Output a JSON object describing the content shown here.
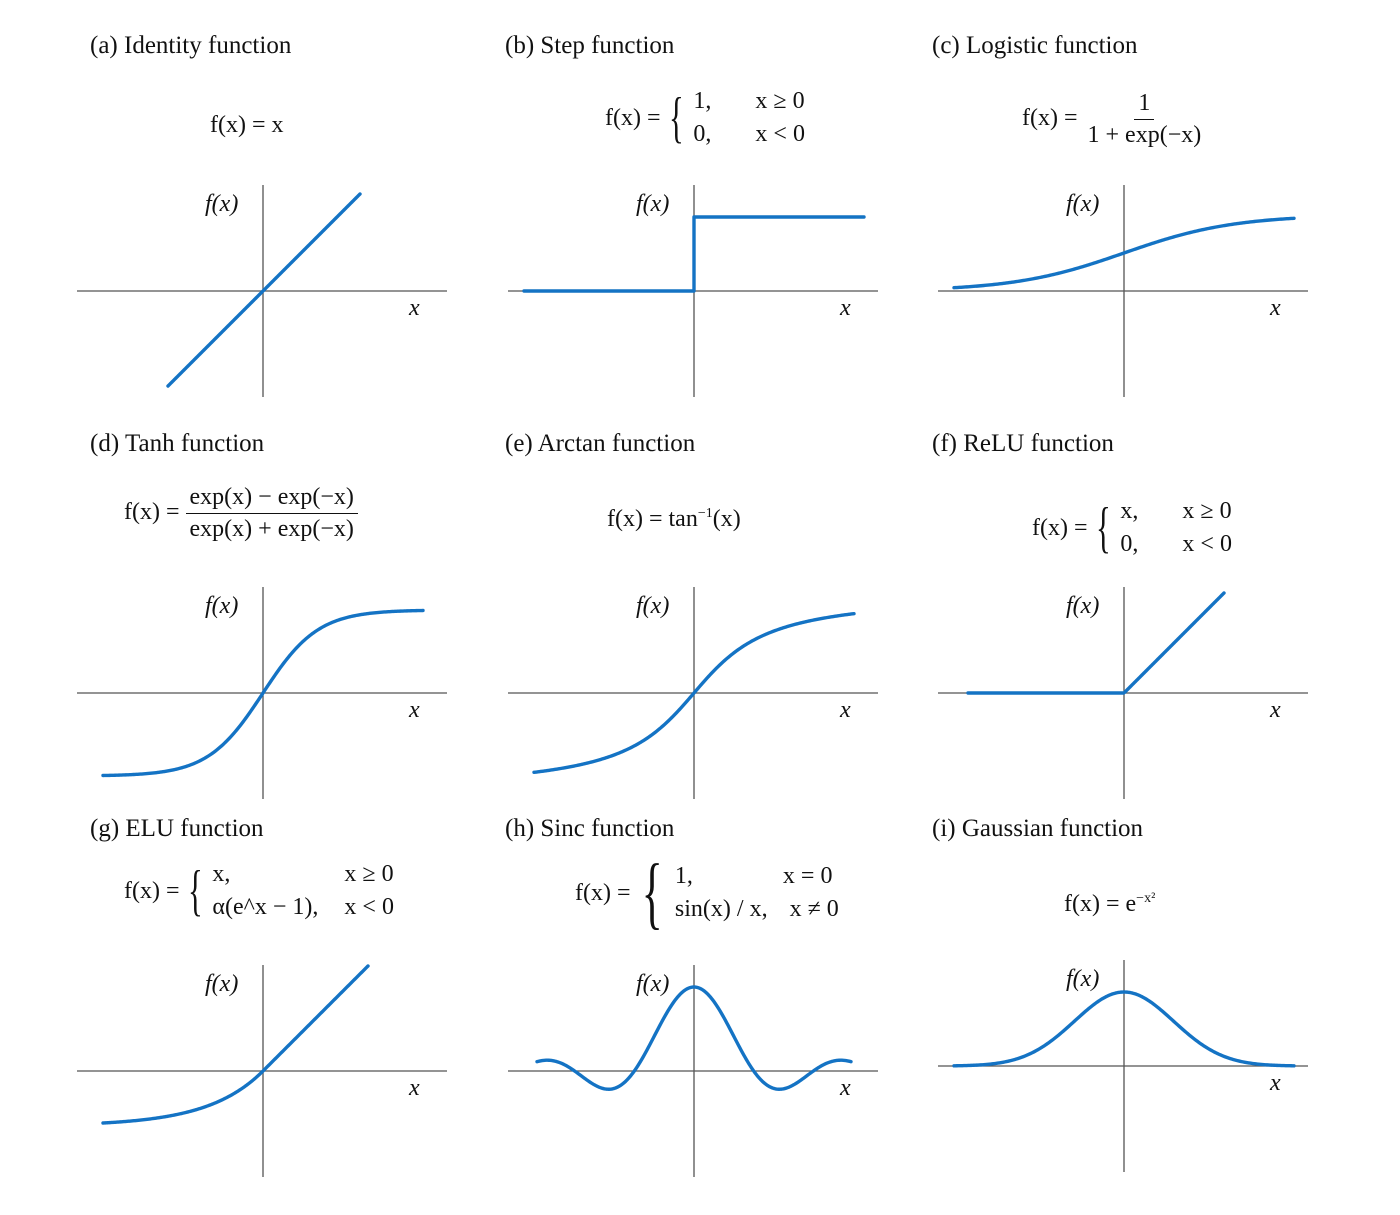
{
  "axis_labels": {
    "y": "f(x)",
    "x": "x"
  },
  "colors": {
    "curve": "#1473c4",
    "axis": "#555555"
  },
  "panels": [
    {
      "id": "identity",
      "title": "(a) Identity function",
      "formula": {
        "lhs": "f(x) = x"
      }
    },
    {
      "id": "step",
      "title": "(b) Step function",
      "formula": {
        "lhs": "f(x) =",
        "cases": [
          [
            "1,",
            "x ≥ 0"
          ],
          [
            "0,",
            "x < 0"
          ]
        ]
      }
    },
    {
      "id": "logistic",
      "title": "(c) Logistic function",
      "formula": {
        "lhs": "f(x) =",
        "num": "1",
        "den": "1 + exp(−x)"
      }
    },
    {
      "id": "tanh",
      "title": "(d) Tanh function",
      "formula": {
        "lhs": "f(x) =",
        "num": "exp(x) − exp(−x)",
        "den": "exp(x) + exp(−x)"
      }
    },
    {
      "id": "arctan",
      "title": "(e) Arctan function",
      "formula": {
        "lhs": "f(x) = tan",
        "sup": "−1",
        "rhs": "(x)"
      }
    },
    {
      "id": "relu",
      "title": "(f) ReLU function",
      "formula": {
        "lhs": "f(x) =",
        "cases": [
          [
            "x,",
            "x ≥ 0"
          ],
          [
            "0,",
            "x < 0"
          ]
        ]
      }
    },
    {
      "id": "elu",
      "title": "(g) ELU function",
      "formula": {
        "lhs": "f(x) =",
        "cases": [
          [
            "x,",
            "x ≥ 0"
          ],
          [
            "α(e^x − 1),",
            "x < 0"
          ]
        ]
      }
    },
    {
      "id": "sinc",
      "title": "(h) Sinc function",
      "formula": {
        "lhs": "f(x) =",
        "cases": [
          [
            "1,",
            "x = 0"
          ],
          [
            "sin(x) / x,",
            "x ≠ 0"
          ]
        ]
      }
    },
    {
      "id": "gaussian",
      "title": "(i) Gaussian function",
      "formula": {
        "lhs": "f(x) = e",
        "sup": "−x²"
      }
    }
  ]
}
